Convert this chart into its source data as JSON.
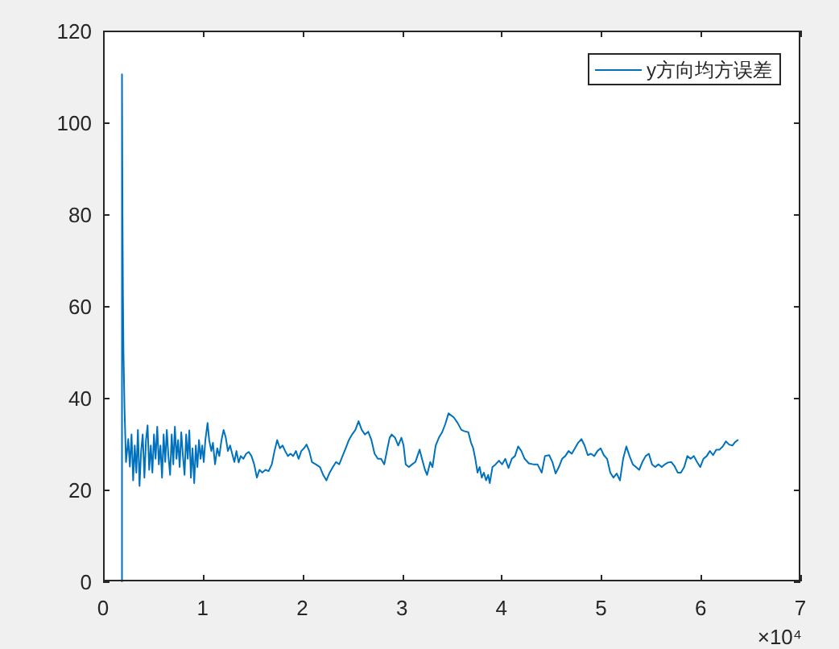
{
  "chart_data": {
    "type": "line",
    "x": [
      0.19,
      0.19,
      0.195,
      0.2,
      0.205,
      0.215,
      0.23,
      0.253,
      0.269,
      0.286,
      0.302,
      0.318,
      0.334,
      0.35,
      0.366,
      0.382,
      0.398,
      0.415,
      0.431,
      0.447,
      0.463,
      0.479,
      0.495,
      0.511,
      0.527,
      0.544,
      0.56,
      0.576,
      0.592,
      0.608,
      0.624,
      0.64,
      0.656,
      0.673,
      0.689,
      0.705,
      0.721,
      0.737,
      0.753,
      0.769,
      0.785,
      0.802,
      0.818,
      0.834,
      0.85,
      0.866,
      0.882,
      0.898,
      0.915,
      0.931,
      0.947,
      0.963,
      0.979,
      0.995,
      1.011,
      1.027,
      1.049,
      1.065,
      1.087,
      1.103,
      1.124,
      1.146,
      1.167,
      1.189,
      1.21,
      1.232,
      1.253,
      1.275,
      1.296,
      1.318,
      1.339,
      1.361,
      1.382,
      1.409,
      1.436,
      1.463,
      1.49,
      1.517,
      1.544,
      1.57,
      1.597,
      1.63,
      1.662,
      1.694,
      1.721,
      1.748,
      1.775,
      1.802,
      1.828,
      1.855,
      1.882,
      1.909,
      1.936,
      1.963,
      1.99,
      2.017,
      2.043,
      2.07,
      2.097,
      2.135,
      2.178,
      2.21,
      2.242,
      2.275,
      2.307,
      2.339,
      2.371,
      2.404,
      2.436,
      2.468,
      2.5,
      2.533,
      2.565,
      2.597,
      2.629,
      2.662,
      2.694,
      2.726,
      2.759,
      2.791,
      2.823,
      2.855,
      2.877,
      2.898,
      2.931,
      2.963,
      2.995,
      3.017,
      3.038,
      3.07,
      3.103,
      3.135,
      3.178,
      3.21,
      3.232,
      3.253,
      3.285,
      3.307,
      3.339,
      3.371,
      3.404,
      3.436,
      3.468,
      3.522,
      3.56,
      3.597,
      3.63,
      3.667,
      3.694,
      3.716,
      3.737,
      3.759,
      3.78,
      3.802,
      3.823,
      3.845,
      3.866,
      3.882,
      3.909,
      3.941,
      3.974,
      4.006,
      4.038,
      4.07,
      4.103,
      4.135,
      4.167,
      4.199,
      4.232,
      4.275,
      4.318,
      4.361,
      4.404,
      4.436,
      4.479,
      4.511,
      4.543,
      4.576,
      4.608,
      4.64,
      4.673,
      4.705,
      4.737,
      4.769,
      4.802,
      4.834,
      4.866,
      4.898,
      4.931,
      4.963,
      4.995,
      5.027,
      5.06,
      5.092,
      5.124,
      5.156,
      5.189,
      5.221,
      5.253,
      5.285,
      5.318,
      5.35,
      5.382,
      5.414,
      5.447,
      5.479,
      5.511,
      5.543,
      5.576,
      5.608,
      5.64,
      5.672,
      5.705,
      5.737,
      5.769,
      5.801,
      5.834,
      5.866,
      5.898,
      5.931,
      5.963,
      5.995,
      6.027,
      6.06,
      6.092,
      6.124,
      6.156,
      6.189,
      6.221,
      6.253,
      6.285,
      6.318,
      6.339,
      6.371
    ],
    "series": [
      {
        "name": "y方向均方误差",
        "color": "#0072bd",
        "values": [
          0,
          110.5,
          80,
          62,
          50,
          38,
          26,
          31,
          25,
          32,
          22,
          29.6,
          23.7,
          33,
          20.8,
          28.4,
          32,
          22.6,
          30.8,
          34,
          24.3,
          29.6,
          23.7,
          32,
          26.7,
          33.7,
          25.5,
          29.6,
          22.6,
          32,
          26,
          33,
          27.3,
          23.2,
          32,
          25.5,
          33.7,
          26.7,
          30.8,
          24.9,
          32.5,
          27.3,
          23.2,
          32,
          26.7,
          32.9,
          22.6,
          29,
          21.4,
          29.6,
          24.9,
          30.8,
          26.7,
          29.6,
          26,
          30.8,
          34.5,
          30.8,
          28.4,
          30.2,
          25.5,
          29,
          27.3,
          30.8,
          33,
          31.3,
          28.4,
          29.6,
          27.8,
          26,
          28.4,
          25.9,
          27.3,
          26.7,
          27.8,
          28.2,
          27.3,
          25.5,
          22.6,
          24.3,
          23.7,
          24.3,
          24,
          25.5,
          28.4,
          30.8,
          29,
          29.6,
          28.4,
          27.3,
          27.8,
          27.3,
          28.4,
          26.7,
          28.4,
          29,
          29.8,
          28.4,
          26,
          25.5,
          24.9,
          23.2,
          22,
          23.7,
          24.9,
          26,
          25.5,
          27.3,
          29,
          30.8,
          32,
          33,
          34.9,
          33,
          32,
          32.6,
          30.8,
          27.8,
          26.7,
          26.7,
          25.5,
          29,
          31.3,
          32,
          31.3,
          29.6,
          31.3,
          29.6,
          25.5,
          24.9,
          25.5,
          26,
          28.7,
          26,
          24.3,
          23.2,
          26,
          24.9,
          29.6,
          31.3,
          32.5,
          34.3,
          36.6,
          35.7,
          34.5,
          33,
          32.7,
          32.5,
          30.2,
          29,
          26.7,
          23.7,
          24.9,
          22.6,
          23.7,
          22,
          23.2,
          21.4,
          24.9,
          25.5,
          26.3,
          25.5,
          26.7,
          24.7,
          26.7,
          27.3,
          29.4,
          28.4,
          26.7,
          25.7,
          25.5,
          25.5,
          23.7,
          27.3,
          27.5,
          26,
          23.5,
          24.9,
          26.7,
          27.3,
          28.4,
          27.8,
          29,
          30.2,
          31,
          29.6,
          27.5,
          27.8,
          27.3,
          28.4,
          29,
          27.5,
          26.7,
          23.7,
          22.6,
          23.5,
          22,
          26.7,
          29.4,
          27.3,
          25.5,
          24.9,
          24.3,
          26,
          27.3,
          27.8,
          25.5,
          24.9,
          25.5,
          24.9,
          25.5,
          25.9,
          26,
          25.1,
          23.7,
          23.7,
          24.9,
          27.3,
          26.7,
          27.3,
          26,
          24.9,
          26.7,
          27.3,
          28.4,
          27.5,
          28.7,
          28.7,
          29.4,
          30.5,
          29.8,
          29.6,
          30.2,
          30.8
        ]
      }
    ],
    "xlim": [
      0,
      7
    ],
    "xticks": [
      0,
      1,
      2,
      3,
      4,
      5,
      6,
      7
    ],
    "ylim": [
      0,
      120
    ],
    "yticks": [
      0,
      20,
      40,
      60,
      80,
      100,
      120
    ],
    "legend": "top right",
    "annotations": [
      "×10⁴"
    ]
  }
}
